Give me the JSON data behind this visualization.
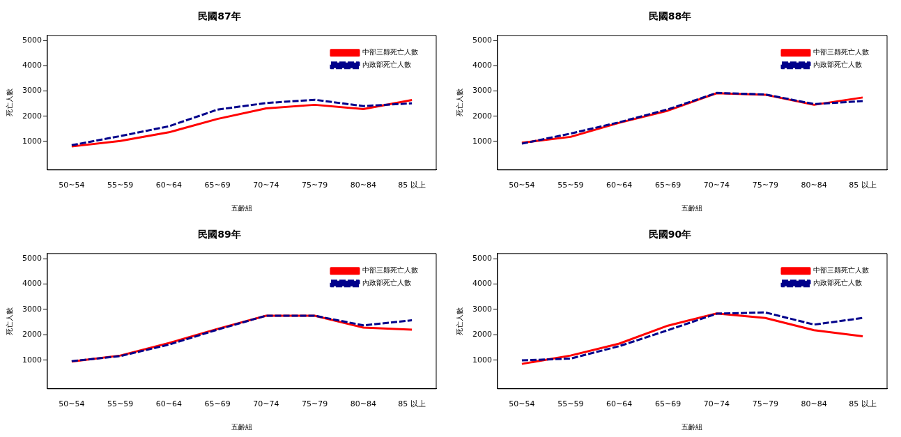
{
  "chart_data": [
    {
      "type": "line",
      "title": "民國87年",
      "xlabel": "五齡組",
      "ylabel": "死亡人數",
      "categories": [
        "50~54",
        "55~59",
        "60~64",
        "65~69",
        "70~74",
        "75~79",
        "80~84",
        "85 以上"
      ],
      "ylim": [
        -130,
        5200
      ],
      "yticks": [
        1000,
        2000,
        3000,
        4000,
        5000
      ],
      "grid": false,
      "legend": "top right",
      "marker": "none",
      "series": [
        {
          "name": "中部三縣死亡人數",
          "color": "#ff0000",
          "line_style": "solid",
          "values": [
            800,
            1020,
            1360,
            1890,
            2310,
            2450,
            2280,
            2640
          ]
        },
        {
          "name": "內政部死亡人數",
          "color": "#00008b",
          "line_style": "dashed",
          "values": [
            850,
            1210,
            1600,
            2260,
            2520,
            2650,
            2400,
            2510
          ]
        }
      ]
    },
    {
      "type": "line",
      "title": "民國88年",
      "xlabel": "五齡組",
      "ylabel": "死亡人數",
      "categories": [
        "50~54",
        "55~59",
        "60~64",
        "65~69",
        "70~74",
        "75~79",
        "80~84",
        "85 以上"
      ],
      "ylim": [
        -130,
        5200
      ],
      "yticks": [
        1000,
        2000,
        3000,
        4000,
        5000
      ],
      "grid": false,
      "legend": "top right",
      "marker": "none",
      "series": [
        {
          "name": "中部三縣死亡人數",
          "color": "#ff0000",
          "line_style": "solid",
          "values": [
            950,
            1180,
            1740,
            2220,
            2910,
            2850,
            2450,
            2740
          ]
        },
        {
          "name": "內政部死亡人數",
          "color": "#00008b",
          "line_style": "dashed",
          "values": [
            910,
            1310,
            1760,
            2270,
            2920,
            2860,
            2480,
            2600
          ]
        }
      ]
    },
    {
      "type": "line",
      "title": "民國89年",
      "xlabel": "五齡組",
      "ylabel": "死亡人數",
      "categories": [
        "50~54",
        "55~59",
        "60~64",
        "65~69",
        "70~74",
        "75~79",
        "80~84",
        "85 以上"
      ],
      "ylim": [
        -130,
        5200
      ],
      "yticks": [
        1000,
        2000,
        3000,
        4000,
        5000
      ],
      "grid": false,
      "legend": "top right",
      "marker": "none",
      "series": [
        {
          "name": "中部三縣死亡人數",
          "color": "#ff0000",
          "line_style": "solid",
          "values": [
            940,
            1180,
            1670,
            2230,
            2750,
            2750,
            2280,
            2200
          ]
        },
        {
          "name": "內政部死亡人數",
          "color": "#00008b",
          "line_style": "dashed",
          "values": [
            960,
            1160,
            1610,
            2200,
            2750,
            2750,
            2370,
            2570
          ]
        }
      ]
    },
    {
      "type": "line",
      "title": "民國90年",
      "xlabel": "五齡組",
      "ylabel": "死亡人數",
      "categories": [
        "50~54",
        "55~59",
        "60~64",
        "65~69",
        "70~74",
        "75~79",
        "80~84",
        "85 以上"
      ],
      "ylim": [
        -130,
        5200
      ],
      "yticks": [
        1000,
        2000,
        3000,
        4000,
        5000
      ],
      "grid": false,
      "legend": "top right",
      "marker": "none",
      "series": [
        {
          "name": "中部三縣死亡人數",
          "color": "#ff0000",
          "line_style": "solid",
          "values": [
            850,
            1180,
            1650,
            2360,
            2840,
            2660,
            2180,
            1940
          ]
        },
        {
          "name": "內政部死亡人數",
          "color": "#00008b",
          "line_style": "dashed",
          "values": [
            990,
            1060,
            1550,
            2180,
            2830,
            2880,
            2400,
            2660
          ]
        }
      ]
    }
  ]
}
